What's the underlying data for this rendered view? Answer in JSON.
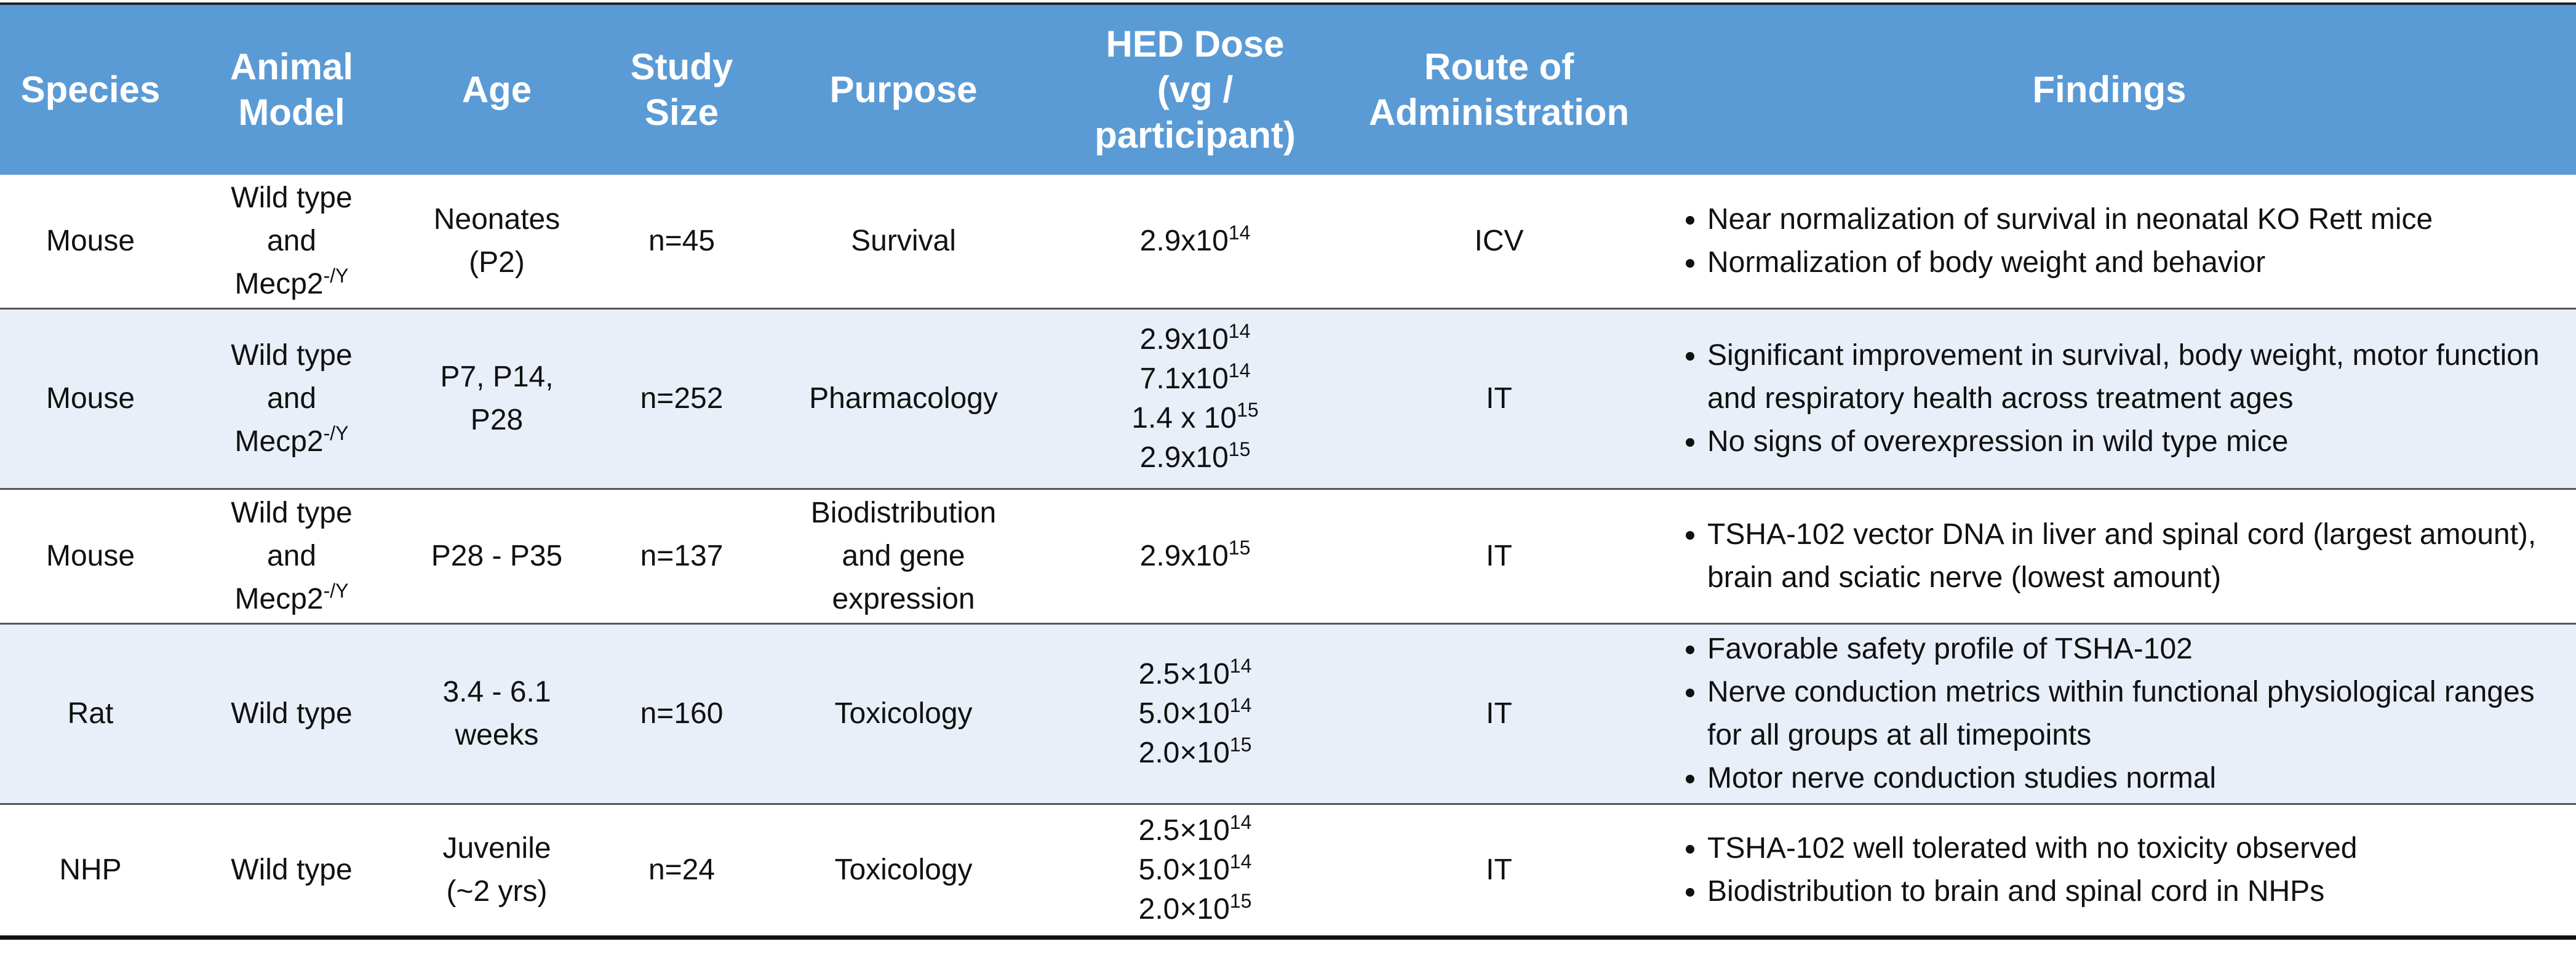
{
  "table": {
    "headers": [
      "Species",
      "Animal\nModel",
      "Age",
      "Study\nSize",
      "Purpose",
      "HED Dose\n(vg /\nparticipant)",
      "Route of\nAdministration",
      "Findings"
    ],
    "rows": [
      {
        "species": "Mouse",
        "model": {
          "text": "Wild type\nand\nMecp2",
          "sup": "-/Y"
        },
        "age": "Neonates\n(P2)",
        "size": "n=45",
        "purpose": "Survival",
        "doses": [
          {
            "base": "2.9x10",
            "exp": "14"
          }
        ],
        "route": "ICV",
        "findings": [
          "Near normalization of survival in neonatal KO Rett mice",
          "Normalization of body weight and behavior"
        ]
      },
      {
        "species": "Mouse",
        "model": {
          "text": "Wild type\nand\nMecp2",
          "sup": "-/Y"
        },
        "age": "P7, P14,\nP28",
        "size": "n=252",
        "purpose": "Pharmacology",
        "doses": [
          {
            "base": "2.9x10",
            "exp": "14"
          },
          {
            "base": "7.1x10",
            "exp": "14"
          },
          {
            "base": "1.4 x 10",
            "exp": "15"
          },
          {
            "base": "2.9x10",
            "exp": "15"
          }
        ],
        "route": "IT",
        "findings": [
          "Significant improvement in survival, body weight, motor function and respiratory health across treatment ages",
          "No signs of overexpression in wild type mice"
        ]
      },
      {
        "species": "Mouse",
        "model": {
          "text": "Wild type\nand\nMecp2",
          "sup": "-/Y"
        },
        "age": "P28 - P35",
        "size": "n=137",
        "purpose": "Biodistribution\nand gene\nexpression",
        "doses": [
          {
            "base": "2.9x10",
            "exp": "15"
          }
        ],
        "route": "IT",
        "findings": [
          "TSHA-102 vector DNA in liver and spinal cord (largest amount), brain and sciatic nerve (lowest amount)"
        ]
      },
      {
        "species": "Rat",
        "model": {
          "text": "Wild type",
          "sup": ""
        },
        "age": "3.4 - 6.1\nweeks",
        "size": "n=160",
        "purpose": "Toxicology",
        "doses": [
          {
            "base": "2.5×10",
            "exp": "14"
          },
          {
            "base": "5.0×10",
            "exp": "14"
          },
          {
            "base": "2.0×10",
            "exp": "15"
          }
        ],
        "route": "IT",
        "findings": [
          "Favorable safety profile of TSHA-102",
          "Nerve conduction metrics within functional physiological ranges for all groups at all timepoints",
          "Motor nerve conduction studies normal"
        ]
      },
      {
        "species": "NHP",
        "model": {
          "text": "Wild type",
          "sup": ""
        },
        "age": "Juvenile\n(~2 yrs)",
        "size": "n=24",
        "purpose": "Toxicology",
        "doses": [
          {
            "base": "2.5×10",
            "exp": "14"
          },
          {
            "base": "5.0×10",
            "exp": "14"
          },
          {
            "base": "2.0×10",
            "exp": "15"
          }
        ],
        "route": "IT",
        "findings": [
          "TSHA-102 well tolerated with no toxicity observed",
          "Biodistribution to brain and spinal cord in NHPs"
        ]
      }
    ]
  }
}
